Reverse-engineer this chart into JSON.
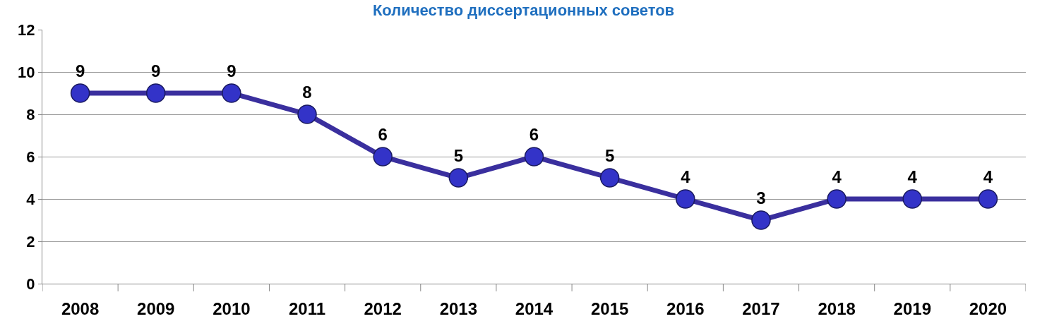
{
  "chart_data": {
    "type": "line",
    "title": "Количество диссертационных советов",
    "categories": [
      "2008",
      "2009",
      "2010",
      "2011",
      "2012",
      "2013",
      "2014",
      "2015",
      "2016",
      "2017",
      "2018",
      "2019",
      "2020"
    ],
    "series": [
      {
        "color": "#3a2f9e",
        "values": [
          9,
          9,
          9,
          8,
          6,
          5,
          6,
          5,
          4,
          3,
          4,
          4,
          4
        ]
      }
    ],
    "ylim": [
      0,
      12
    ],
    "yticks": [
      0,
      2,
      4,
      6,
      8,
      10,
      12
    ],
    "grid": "y",
    "marker": "circle",
    "line_style": "solid",
    "data_labels": true
  }
}
